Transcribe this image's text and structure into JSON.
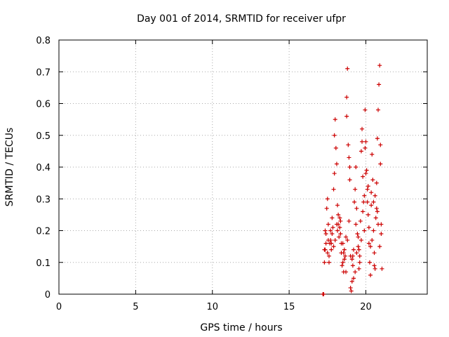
{
  "chart_data": {
    "type": "scatter",
    "title": "Day 001 of 2014, SRMTID for receiver ufpr",
    "xlabel": "GPS time / hours",
    "ylabel": "SRMTID / TECUs",
    "xlim": [
      0,
      24
    ],
    "ylim": [
      0,
      0.8
    ],
    "xticks": [
      0,
      5,
      10,
      15,
      20
    ],
    "xtick_labels": [
      "0",
      "5",
      "10",
      "15",
      "20"
    ],
    "yticks": [
      0,
      0.1,
      0.2,
      0.3,
      0.4,
      0.5,
      0.6,
      0.7,
      0.8
    ],
    "ytick_labels": [
      "0",
      "0.1",
      "0.2",
      "0.3",
      "0.4",
      "0.5",
      "0.6",
      "0.7",
      "0.8"
    ],
    "grid": true,
    "marker": "plus",
    "color": "#cc0000",
    "series": [
      {
        "name": "SRMTID",
        "points": [
          [
            17.2,
            0.0
          ],
          [
            17.25,
            0.0
          ],
          [
            17.3,
            0.1
          ],
          [
            17.35,
            0.14
          ],
          [
            17.4,
            0.19
          ],
          [
            17.45,
            0.27
          ],
          [
            17.5,
            0.3
          ],
          [
            17.55,
            0.17
          ],
          [
            17.6,
            0.12
          ],
          [
            17.65,
            0.16
          ],
          [
            17.7,
            0.2
          ],
          [
            17.75,
            0.14
          ],
          [
            17.8,
            0.24
          ],
          [
            17.85,
            0.21
          ],
          [
            17.9,
            0.33
          ],
          [
            17.95,
            0.38
          ],
          [
            18.0,
            0.55
          ],
          [
            18.05,
            0.46
          ],
          [
            18.1,
            0.41
          ],
          [
            18.15,
            0.28
          ],
          [
            18.2,
            0.22
          ],
          [
            18.25,
            0.18
          ],
          [
            18.3,
            0.24
          ],
          [
            18.35,
            0.19
          ],
          [
            18.4,
            0.13
          ],
          [
            18.45,
            0.09
          ],
          [
            18.5,
            0.16
          ],
          [
            18.55,
            0.07
          ],
          [
            18.6,
            0.11
          ],
          [
            18.65,
            0.12
          ],
          [
            18.7,
            0.07
          ],
          [
            18.75,
            0.62
          ],
          [
            18.8,
            0.71
          ],
          [
            18.85,
            0.47
          ],
          [
            18.9,
            0.43
          ],
          [
            18.95,
            0.36
          ],
          [
            19.0,
            0.02
          ],
          [
            19.05,
            0.01
          ],
          [
            19.1,
            0.04
          ],
          [
            19.15,
            0.09
          ],
          [
            19.2,
            0.14
          ],
          [
            19.25,
            0.29
          ],
          [
            19.3,
            0.33
          ],
          [
            19.35,
            0.4
          ],
          [
            19.4,
            0.27
          ],
          [
            19.45,
            0.19
          ],
          [
            19.5,
            0.15
          ],
          [
            19.55,
            0.08
          ],
          [
            19.6,
            0.12
          ],
          [
            19.65,
            0.23
          ],
          [
            19.7,
            0.45
          ],
          [
            19.75,
            0.52
          ],
          [
            19.8,
            0.37
          ],
          [
            19.85,
            0.29
          ],
          [
            19.9,
            0.2
          ],
          [
            19.95,
            0.58
          ],
          [
            20.0,
            0.48
          ],
          [
            20.05,
            0.39
          ],
          [
            20.1,
            0.33
          ],
          [
            20.15,
            0.25
          ],
          [
            20.2,
            0.16
          ],
          [
            20.25,
            0.1
          ],
          [
            20.3,
            0.06
          ],
          [
            20.35,
            0.28
          ],
          [
            20.4,
            0.44
          ],
          [
            20.45,
            0.36
          ],
          [
            20.5,
            0.29
          ],
          [
            20.55,
            0.13
          ],
          [
            20.6,
            0.08
          ],
          [
            20.65,
            0.24
          ],
          [
            20.7,
            0.27
          ],
          [
            20.75,
            0.49
          ],
          [
            20.8,
            0.58
          ],
          [
            20.85,
            0.66
          ],
          [
            20.9,
            0.72
          ],
          [
            20.95,
            0.41
          ],
          [
            21.0,
            0.19
          ],
          [
            21.05,
            0.08
          ],
          [
            17.3,
            0.14
          ],
          [
            17.4,
            0.16
          ],
          [
            17.5,
            0.13
          ],
          [
            17.6,
            0.1
          ],
          [
            17.7,
            0.17
          ],
          [
            17.8,
            0.19
          ],
          [
            17.9,
            0.15
          ],
          [
            18.0,
            0.17
          ],
          [
            18.1,
            0.22
          ],
          [
            18.2,
            0.25
          ],
          [
            18.3,
            0.21
          ],
          [
            18.4,
            0.16
          ],
          [
            18.5,
            0.1
          ],
          [
            18.6,
            0.14
          ],
          [
            18.7,
            0.18
          ],
          [
            18.8,
            0.17
          ],
          [
            18.9,
            0.23
          ],
          [
            19.0,
            0.12
          ],
          [
            19.1,
            0.11
          ],
          [
            19.2,
            0.05
          ],
          [
            19.3,
            0.07
          ],
          [
            19.4,
            0.13
          ],
          [
            19.5,
            0.18
          ],
          [
            19.6,
            0.1
          ],
          [
            19.7,
            0.17
          ],
          [
            19.8,
            0.26
          ],
          [
            19.9,
            0.31
          ],
          [
            20.0,
            0.38
          ],
          [
            20.1,
            0.29
          ],
          [
            20.2,
            0.21
          ],
          [
            20.3,
            0.15
          ],
          [
            20.4,
            0.17
          ],
          [
            20.5,
            0.2
          ],
          [
            20.6,
            0.31
          ],
          [
            20.7,
            0.35
          ],
          [
            20.8,
            0.22
          ],
          [
            20.9,
            0.15
          ],
          [
            21.0,
            0.22
          ],
          [
            17.35,
            0.2
          ],
          [
            17.55,
            0.22
          ],
          [
            17.75,
            0.16
          ],
          [
            17.95,
            0.5
          ],
          [
            18.15,
            0.2
          ],
          [
            18.35,
            0.23
          ],
          [
            18.55,
            0.13
          ],
          [
            18.75,
            0.56
          ],
          [
            18.95,
            0.4
          ],
          [
            19.15,
            0.12
          ],
          [
            19.35,
            0.22
          ],
          [
            19.55,
            0.14
          ],
          [
            19.75,
            0.48
          ],
          [
            19.95,
            0.46
          ],
          [
            20.15,
            0.34
          ],
          [
            20.35,
            0.32
          ],
          [
            20.55,
            0.09
          ],
          [
            20.75,
            0.26
          ],
          [
            20.95,
            0.47
          ]
        ]
      }
    ]
  }
}
